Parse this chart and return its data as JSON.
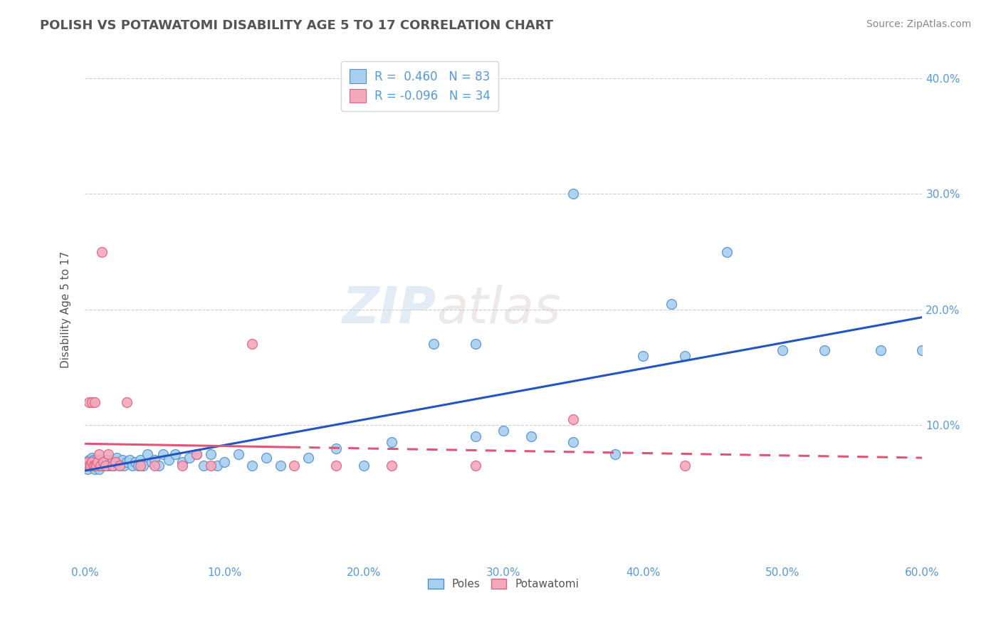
{
  "title": "POLISH VS POTAWATOMI DISABILITY AGE 5 TO 17 CORRELATION CHART",
  "source": "Source: ZipAtlas.com",
  "ylabel": "Disability Age 5 to 17",
  "xlim": [
    0.0,
    0.6
  ],
  "ylim": [
    -0.02,
    0.42
  ],
  "xticks": [
    0.0,
    0.1,
    0.2,
    0.3,
    0.4,
    0.5,
    0.6
  ],
  "yticks": [
    0.1,
    0.2,
    0.3,
    0.4
  ],
  "xticklabels": [
    "0.0%",
    "10.0%",
    "20.0%",
    "30.0%",
    "40.0%",
    "50.0%",
    "60.0%"
  ],
  "yticklabels_right": [
    "10.0%",
    "20.0%",
    "30.0%",
    "40.0%"
  ],
  "poles_R": 0.46,
  "poles_N": 83,
  "potawatomi_R": -0.096,
  "potawatomi_N": 34,
  "poles_color": "#A8CFF0",
  "potawatomi_color": "#F4A8BC",
  "poles_edge_color": "#5090D0",
  "potawatomi_edge_color": "#E06080",
  "poles_line_color": "#2255C0",
  "potawatomi_line_color": "#E05575",
  "tick_color": "#5599DD",
  "title_color": "#555555",
  "poles_x": [
    0.001,
    0.002,
    0.002,
    0.003,
    0.003,
    0.004,
    0.004,
    0.005,
    0.005,
    0.005,
    0.006,
    0.006,
    0.007,
    0.007,
    0.008,
    0.008,
    0.009,
    0.009,
    0.01,
    0.01,
    0.01,
    0.011,
    0.012,
    0.012,
    0.013,
    0.014,
    0.015,
    0.016,
    0.017,
    0.018,
    0.019,
    0.02,
    0.021,
    0.022,
    0.023,
    0.025,
    0.027,
    0.028,
    0.03,
    0.032,
    0.034,
    0.036,
    0.038,
    0.04,
    0.042,
    0.045,
    0.048,
    0.05,
    0.053,
    0.056,
    0.06,
    0.065,
    0.07,
    0.075,
    0.08,
    0.085,
    0.09,
    0.095,
    0.1,
    0.11,
    0.12,
    0.13,
    0.14,
    0.16,
    0.18,
    0.2,
    0.22,
    0.25,
    0.28,
    0.3,
    0.32,
    0.35,
    0.38,
    0.4,
    0.43,
    0.46,
    0.5,
    0.53,
    0.57,
    0.6,
    0.28,
    0.35,
    0.42
  ],
  "poles_y": [
    0.065,
    0.062,
    0.068,
    0.065,
    0.07,
    0.065,
    0.068,
    0.065,
    0.068,
    0.072,
    0.065,
    0.07,
    0.062,
    0.068,
    0.065,
    0.07,
    0.065,
    0.068,
    0.062,
    0.065,
    0.07,
    0.068,
    0.065,
    0.07,
    0.065,
    0.068,
    0.065,
    0.07,
    0.065,
    0.068,
    0.065,
    0.07,
    0.065,
    0.068,
    0.072,
    0.065,
    0.07,
    0.065,
    0.068,
    0.07,
    0.065,
    0.068,
    0.065,
    0.07,
    0.065,
    0.075,
    0.068,
    0.07,
    0.065,
    0.075,
    0.07,
    0.075,
    0.068,
    0.072,
    0.075,
    0.065,
    0.075,
    0.065,
    0.068,
    0.075,
    0.065,
    0.072,
    0.065,
    0.072,
    0.08,
    0.065,
    0.085,
    0.17,
    0.09,
    0.095,
    0.09,
    0.085,
    0.075,
    0.16,
    0.16,
    0.25,
    0.165,
    0.165,
    0.165,
    0.165,
    0.17,
    0.3,
    0.205
  ],
  "potawatomi_x": [
    0.001,
    0.002,
    0.003,
    0.003,
    0.004,
    0.005,
    0.005,
    0.006,
    0.007,
    0.007,
    0.008,
    0.009,
    0.01,
    0.011,
    0.012,
    0.013,
    0.015,
    0.017,
    0.02,
    0.022,
    0.025,
    0.03,
    0.04,
    0.05,
    0.07,
    0.08,
    0.09,
    0.12,
    0.15,
    0.18,
    0.22,
    0.28,
    0.35,
    0.43
  ],
  "potawatomi_y": [
    0.065,
    0.068,
    0.065,
    0.12,
    0.065,
    0.068,
    0.12,
    0.065,
    0.065,
    0.12,
    0.065,
    0.068,
    0.075,
    0.065,
    0.25,
    0.068,
    0.065,
    0.075,
    0.065,
    0.068,
    0.065,
    0.12,
    0.065,
    0.065,
    0.065,
    0.075,
    0.065,
    0.17,
    0.065,
    0.065,
    0.065,
    0.065,
    0.105,
    0.065
  ]
}
